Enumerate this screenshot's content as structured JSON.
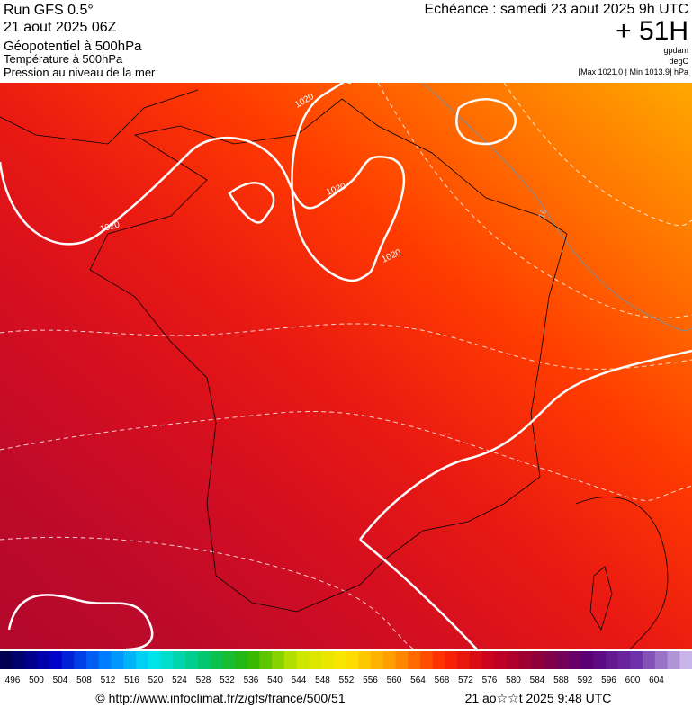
{
  "header": {
    "run": "Run GFS 0.5°",
    "run_date": "21 aout 2025 06Z",
    "fields": [
      "Géopotentiel à 500hPa",
      "Température à 500hPa",
      "Pression au niveau de la mer"
    ],
    "valid": "Echéance : samedi 23 aout 2025 9h UTC",
    "lead": "+ 51H",
    "units": [
      "gpdam",
      "degC",
      "[Max 1021.0 | Min 1013.9] hPa"
    ]
  },
  "map": {
    "isobar_labels": [
      "1020",
      "1020",
      "1020",
      "1020"
    ],
    "isotherm_label": "16"
  },
  "colorbar": {
    "labels": [
      496,
      500,
      504,
      508,
      512,
      516,
      520,
      524,
      528,
      532,
      536,
      540,
      544,
      548,
      552,
      556,
      560,
      564,
      568,
      572,
      576,
      580,
      584,
      588,
      592,
      596,
      600,
      604
    ]
  },
  "footer": {
    "source": "© http://www.infoclimat.fr/z/gfs/france/500/51",
    "generated": "21 ao☆☆t 2025  9:48 UTC"
  }
}
